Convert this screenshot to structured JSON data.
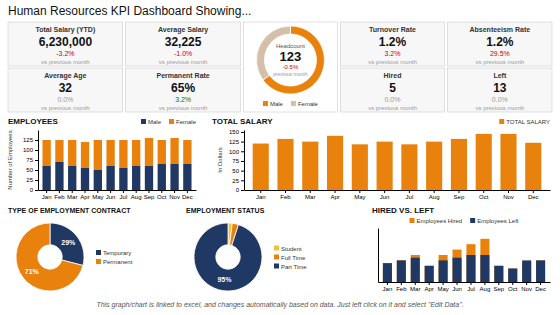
{
  "title": "Human Resources KPI Dashboard Showing...",
  "annotations": [
    "This graph/chart is linked to excel, and changes automatically based on data. Just left click on it and select \"Edit Data\"."
  ],
  "chart_data": [
    {
      "type": "kpi",
      "title": "Total Salary (YTD)",
      "annotations": [
        "6,230,000",
        "-3.2%",
        "vs previous month"
      ],
      "color": "#CC0000"
    },
    {
      "type": "kpi",
      "title": "Average Salary",
      "annotations": [
        "32,225",
        "-1.0%",
        "vs previous month"
      ],
      "color": "#CC0000"
    },
    {
      "type": "kpi",
      "title": "Turnover Rate",
      "annotations": [
        "1.2%",
        "3.2%",
        "vs previous month"
      ],
      "color": "#CC0000"
    },
    {
      "type": "kpi",
      "title": "Absenteeism Rate",
      "annotations": [
        "1.2%",
        "29.5%",
        "vs previous month"
      ],
      "color": "#CC0000"
    },
    {
      "type": "kpi",
      "title": "Average Age",
      "annotations": [
        "32",
        "0.0%",
        "vs previous month"
      ],
      "color": "#999999"
    },
    {
      "type": "kpi",
      "title": "Permanent Rate",
      "annotations": [
        "65%",
        "3.2%",
        "vs previous month"
      ],
      "color": "#007700"
    },
    {
      "type": "kpi",
      "title": "Hired",
      "annotations": [
        "5",
        "0.0%",
        "vs previous month"
      ],
      "color": "#999999"
    },
    {
      "type": "kpi",
      "title": "Left",
      "annotations": [
        "13",
        "0.0%",
        "vs previous month"
      ],
      "color": "#999999"
    },
    {
      "type": "pie",
      "title": "Headcount",
      "categories": [
        "Male",
        "Female"
      ],
      "values": [
        65,
        35
      ],
      "colors": [
        "#E8820C",
        "#D4C0A8"
      ],
      "legend": "bottom",
      "annotations": [
        "123",
        "-0.5%",
        "previous month"
      ],
      "color": "#CC0000"
    },
    {
      "type": "bar",
      "title": "EMPLOYEES",
      "y_label": "Number of Employees",
      "categories": [
        "Jan",
        "Feb",
        "Mar",
        "Apr",
        "May",
        "Jun",
        "Jul",
        "Aug",
        "Sep",
        "Oct",
        "Nov",
        "Dec"
      ],
      "series": [
        {
          "name": "Male",
          "color": "#1F3864",
          "values": [
            60,
            70,
            60,
            55,
            50,
            60,
            55,
            60,
            60,
            65,
            65,
            65
          ]
        },
        {
          "name": "Female",
          "color": "#E8820C",
          "values": [
            65,
            55,
            65,
            65,
            75,
            65,
            70,
            65,
            70,
            60,
            65,
            60
          ]
        }
      ],
      "stacked": true,
      "ylim": [
        0,
        150
      ],
      "yticks": [
        0,
        25,
        50,
        75,
        100,
        125
      ],
      "grid": false,
      "legend": "upper right"
    },
    {
      "type": "bar",
      "title": "TOTAL SALARY",
      "y_label": "In Dollars",
      "categories": [
        "Jan",
        "Feb",
        "Mar",
        "Apr",
        "May",
        "Jun",
        "Jul",
        "Aug",
        "Sep",
        "Oct",
        "Nov",
        "Dec"
      ],
      "series": [
        {
          "name": "TOTAL SALARY",
          "color": "#E8820C",
          "values": [
            120,
            132,
            125,
            140,
            118,
            125,
            118,
            125,
            132,
            145,
            145,
            122
          ]
        }
      ],
      "ylim": [
        0,
        155
      ],
      "yticks": [
        0,
        25,
        50,
        75,
        100,
        125,
        150
      ],
      "grid": false,
      "legend": "upper right"
    },
    {
      "type": "pie",
      "title": "TYPE OF EMPLOYMENT CONTRACT",
      "categories": [
        "Temporary",
        "Permanent"
      ],
      "values": [
        29,
        71
      ],
      "colors": [
        "#1F3864",
        "#E8820C"
      ],
      "data_labels": true,
      "value_labels": [
        "29%",
        "71%"
      ],
      "legend": "right"
    },
    {
      "type": "pie",
      "title": "EMPLOYMENT STATUS",
      "categories": [
        "Student",
        "Full Time",
        "Part Time"
      ],
      "values": [
        2,
        3,
        95
      ],
      "colors": [
        "#F0C040",
        "#E8820C",
        "#1F3864"
      ],
      "data_labels": true,
      "value_labels": [
        null,
        null,
        "95%"
      ],
      "legend": "right"
    },
    {
      "type": "bar",
      "title": "HIRED VS. LEFT",
      "categories": [
        "Jan",
        "Feb",
        "Mar",
        "Apr",
        "May",
        "Jun",
        "Jul",
        "Aug",
        "Sep",
        "Oct",
        "Nov",
        "Dec"
      ],
      "series": [
        {
          "name": "Employees Hired",
          "color": "#E8820C",
          "values": [
            5,
            8,
            10,
            6,
            10,
            12,
            14,
            16,
            6,
            5,
            7,
            8
          ]
        },
        {
          "name": "Employees Left",
          "color": "#1F3864",
          "values": [
            7,
            8,
            9,
            6,
            8,
            9,
            10,
            10,
            6,
            5,
            8,
            8
          ]
        }
      ],
      "ylim": [
        0,
        20
      ],
      "tick_labels": "x",
      "grid": false,
      "legend": "top"
    }
  ]
}
